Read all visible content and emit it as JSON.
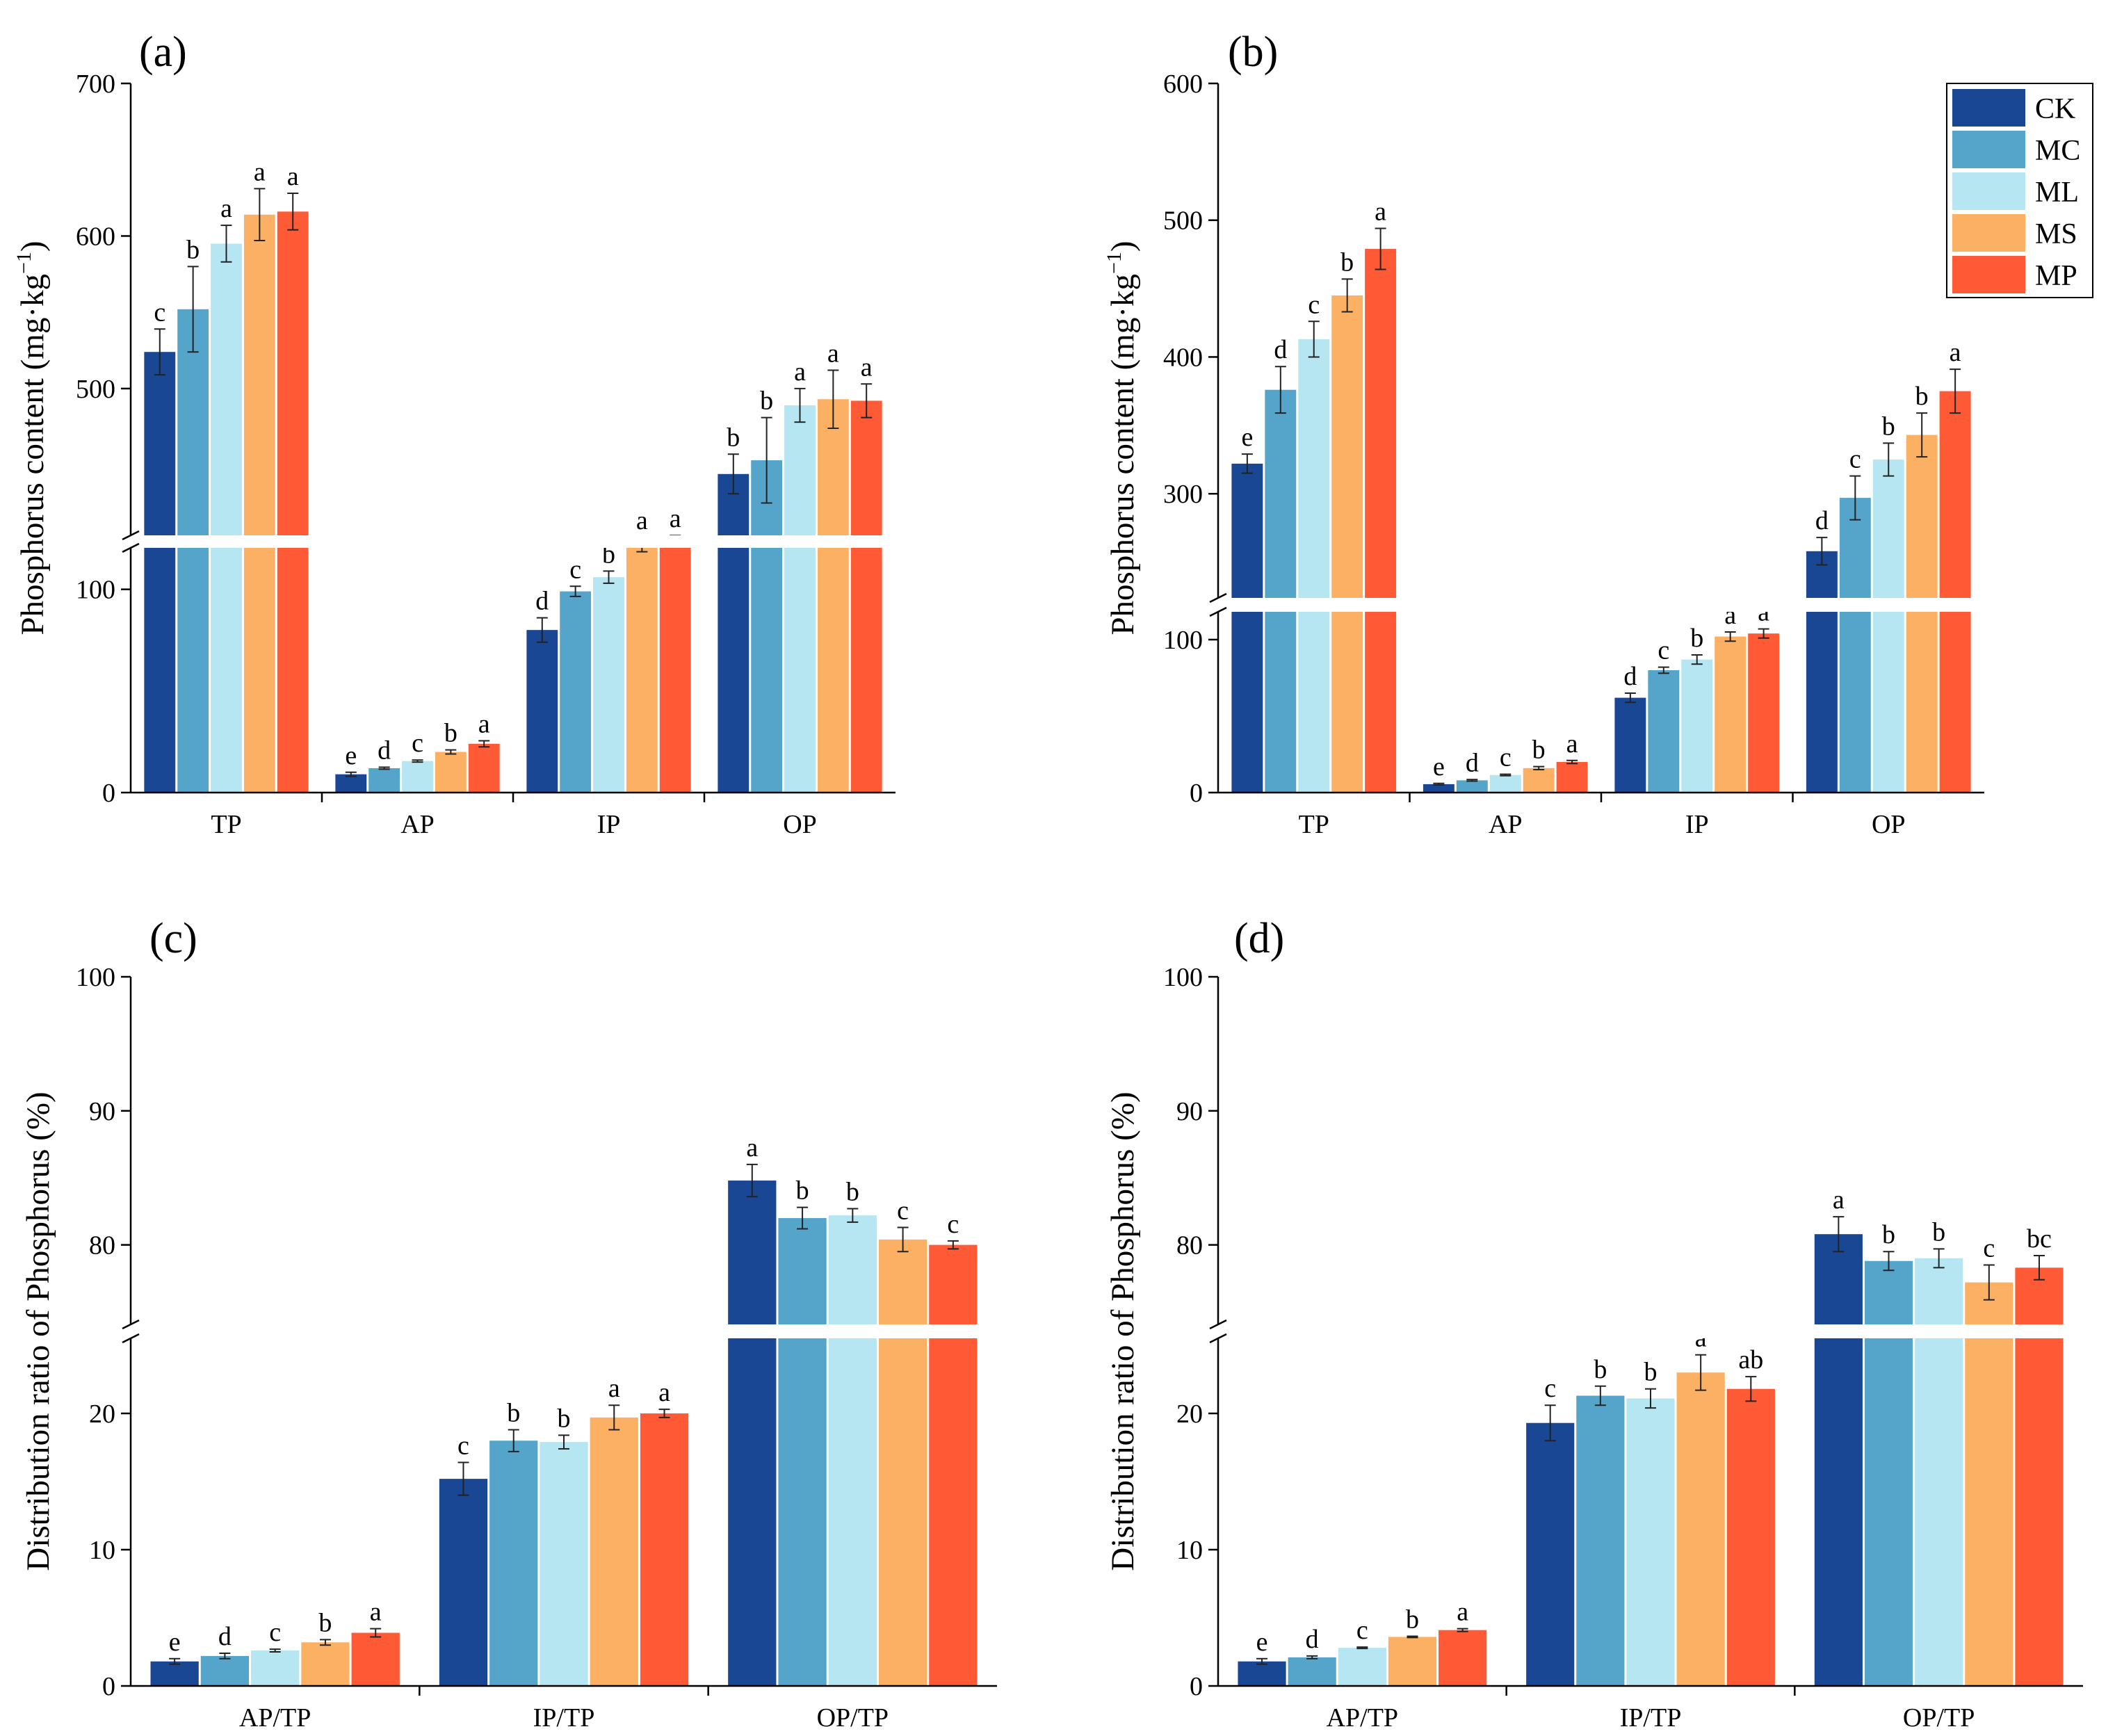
{
  "chart_data": [
    {
      "type": "bar",
      "panel_label": "(a)",
      "ylabel": "Phosphorus content (mg·kg",
      "ylabel_sup": "−1",
      "ylabel_end": ")",
      "categories": [
        "TP",
        "AP",
        "IP",
        "OP"
      ],
      "y_break": {
        "lower_range": [
          0,
          130
        ],
        "upper_range": [
          412,
          700
        ]
      },
      "lower_ticks": [
        0,
        100
      ],
      "upper_ticks": [
        500,
        600,
        700
      ],
      "series": [
        {
          "name": "CK",
          "values": [
            524,
            9,
            80,
            444
          ],
          "errors": [
            15,
            1,
            6,
            13
          ],
          "letters": [
            "c",
            "e",
            "d",
            "b"
          ]
        },
        {
          "name": "MC",
          "values": [
            552,
            12,
            99,
            453
          ],
          "errors": [
            28,
            0.5,
            2.5,
            28
          ],
          "letters": [
            "b",
            "d",
            "c",
            "b"
          ]
        },
        {
          "name": "ML",
          "values": [
            595,
            15.5,
            106,
            489
          ],
          "errors": [
            12,
            0.5,
            3,
            11
          ],
          "letters": [
            "a",
            "c",
            "b",
            "a"
          ]
        },
        {
          "name": "MS",
          "values": [
            614,
            20,
            122,
            493
          ],
          "errors": [
            17,
            1,
            3.5,
            19
          ],
          "letters": [
            "a",
            "b",
            "a",
            "a"
          ]
        },
        {
          "name": "MP",
          "values": [
            616,
            24,
            124,
            492
          ],
          "errors": [
            12,
            1.5,
            2.5,
            11
          ],
          "letters": [
            "a",
            "a",
            "a",
            "a"
          ]
        }
      ]
    },
    {
      "type": "bar",
      "panel_label": "(b)",
      "ylabel": "Phosphorus content (mg·kg",
      "ylabel_sup": "−1",
      "ylabel_end": ")",
      "categories": [
        "TP",
        "AP",
        "IP",
        "OP"
      ],
      "y_break": {
        "lower_range": [
          0,
          125
        ],
        "upper_range": [
          233,
          600
        ]
      },
      "lower_ticks": [
        0,
        100
      ],
      "upper_ticks": [
        300,
        400,
        500,
        600
      ],
      "series": [
        {
          "name": "CK",
          "values": [
            322,
            5.5,
            62,
            258
          ],
          "errors": [
            7,
            0.5,
            3,
            10
          ],
          "letters": [
            "e",
            "e",
            "d",
            "d"
          ]
        },
        {
          "name": "MC",
          "values": [
            376,
            8,
            80,
            297
          ],
          "errors": [
            17,
            0.5,
            2,
            16
          ],
          "letters": [
            "d",
            "d",
            "c",
            "c"
          ]
        },
        {
          "name": "ML",
          "values": [
            413,
            11.5,
            87,
            325
          ],
          "errors": [
            13,
            0.5,
            3,
            12
          ],
          "letters": [
            "c",
            "c",
            "b",
            "b"
          ]
        },
        {
          "name": "MS",
          "values": [
            445,
            16,
            102,
            343
          ],
          "errors": [
            12,
            1,
            3,
            16
          ],
          "letters": [
            "b",
            "b",
            "a",
            "b"
          ]
        },
        {
          "name": "MP",
          "values": [
            479,
            20,
            104,
            375
          ],
          "errors": [
            15,
            1,
            3,
            16
          ],
          "letters": [
            "a",
            "a",
            "a",
            "a"
          ]
        }
      ]
    },
    {
      "type": "bar",
      "panel_label": "(c)",
      "ylabel": "Distribution ratio of Phosphorus (%)",
      "categories": [
        "AP/TP",
        "IP/TP",
        "OP/TP"
      ],
      "y_break": {
        "lower_range": [
          0,
          25
        ],
        "upper_range": [
          75,
          100
        ]
      },
      "lower_ticks": [
        0,
        10,
        20
      ],
      "upper_ticks": [
        80,
        90,
        100
      ],
      "series": [
        {
          "name": "CK",
          "values": [
            1.8,
            15.2,
            84.8
          ],
          "errors": [
            0.2,
            1.2,
            1.2
          ],
          "letters": [
            "e",
            "c",
            "a"
          ]
        },
        {
          "name": "MC",
          "values": [
            2.2,
            18.0,
            82.0
          ],
          "errors": [
            0.2,
            0.8,
            0.8
          ],
          "letters": [
            "d",
            "b",
            "b"
          ]
        },
        {
          "name": "ML",
          "values": [
            2.6,
            17.9,
            82.2
          ],
          "errors": [
            0.1,
            0.5,
            0.5
          ],
          "letters": [
            "c",
            "b",
            "b"
          ]
        },
        {
          "name": "MS",
          "values": [
            3.2,
            19.7,
            80.4
          ],
          "errors": [
            0.2,
            0.9,
            0.9
          ],
          "letters": [
            "b",
            "a",
            "c"
          ]
        },
        {
          "name": "MP",
          "values": [
            3.9,
            20.0,
            80.0
          ],
          "errors": [
            0.3,
            0.3,
            0.3
          ],
          "letters": [
            "a",
            "a",
            "c"
          ]
        }
      ]
    },
    {
      "type": "bar",
      "panel_label": "(d)",
      "ylabel": "Distribution ratio of Phosphorus (%)",
      "categories": [
        "AP/TP",
        "IP/TP",
        "OP/TP"
      ],
      "y_break": {
        "lower_range": [
          0,
          25
        ],
        "upper_range": [
          75,
          100
        ]
      },
      "lower_ticks": [
        0,
        10,
        20
      ],
      "upper_ticks": [
        80,
        90,
        100
      ],
      "series": [
        {
          "name": "CK",
          "values": [
            1.8,
            19.3,
            80.8
          ],
          "errors": [
            0.2,
            1.3,
            1.3
          ],
          "letters": [
            "e",
            "c",
            "a"
          ]
        },
        {
          "name": "MC",
          "values": [
            2.1,
            21.3,
            78.8
          ],
          "errors": [
            0.1,
            0.7,
            0.7
          ],
          "letters": [
            "d",
            "b",
            "b"
          ]
        },
        {
          "name": "ML",
          "values": [
            2.8,
            21.1,
            79.0
          ],
          "errors": [
            0.05,
            0.7,
            0.7
          ],
          "letters": [
            "c",
            "b",
            "b"
          ]
        },
        {
          "name": "MS",
          "values": [
            3.6,
            23.0,
            77.2
          ],
          "errors": [
            0.05,
            1.3,
            1.3
          ],
          "letters": [
            "b",
            "a",
            "c"
          ]
        },
        {
          "name": "MP",
          "values": [
            4.1,
            21.8,
            78.3
          ],
          "errors": [
            0.1,
            0.9,
            0.9
          ],
          "letters": [
            "a",
            "ab",
            "bc"
          ]
        }
      ]
    }
  ],
  "legend": [
    {
      "name": "CK",
      "color": "#1a4793"
    },
    {
      "name": "MC",
      "color": "#55a5cb"
    },
    {
      "name": "ML",
      "color": "#b6e6f2"
    },
    {
      "name": "MS",
      "color": "#fcb063"
    },
    {
      "name": "MP",
      "color": "#fd5a35"
    }
  ]
}
